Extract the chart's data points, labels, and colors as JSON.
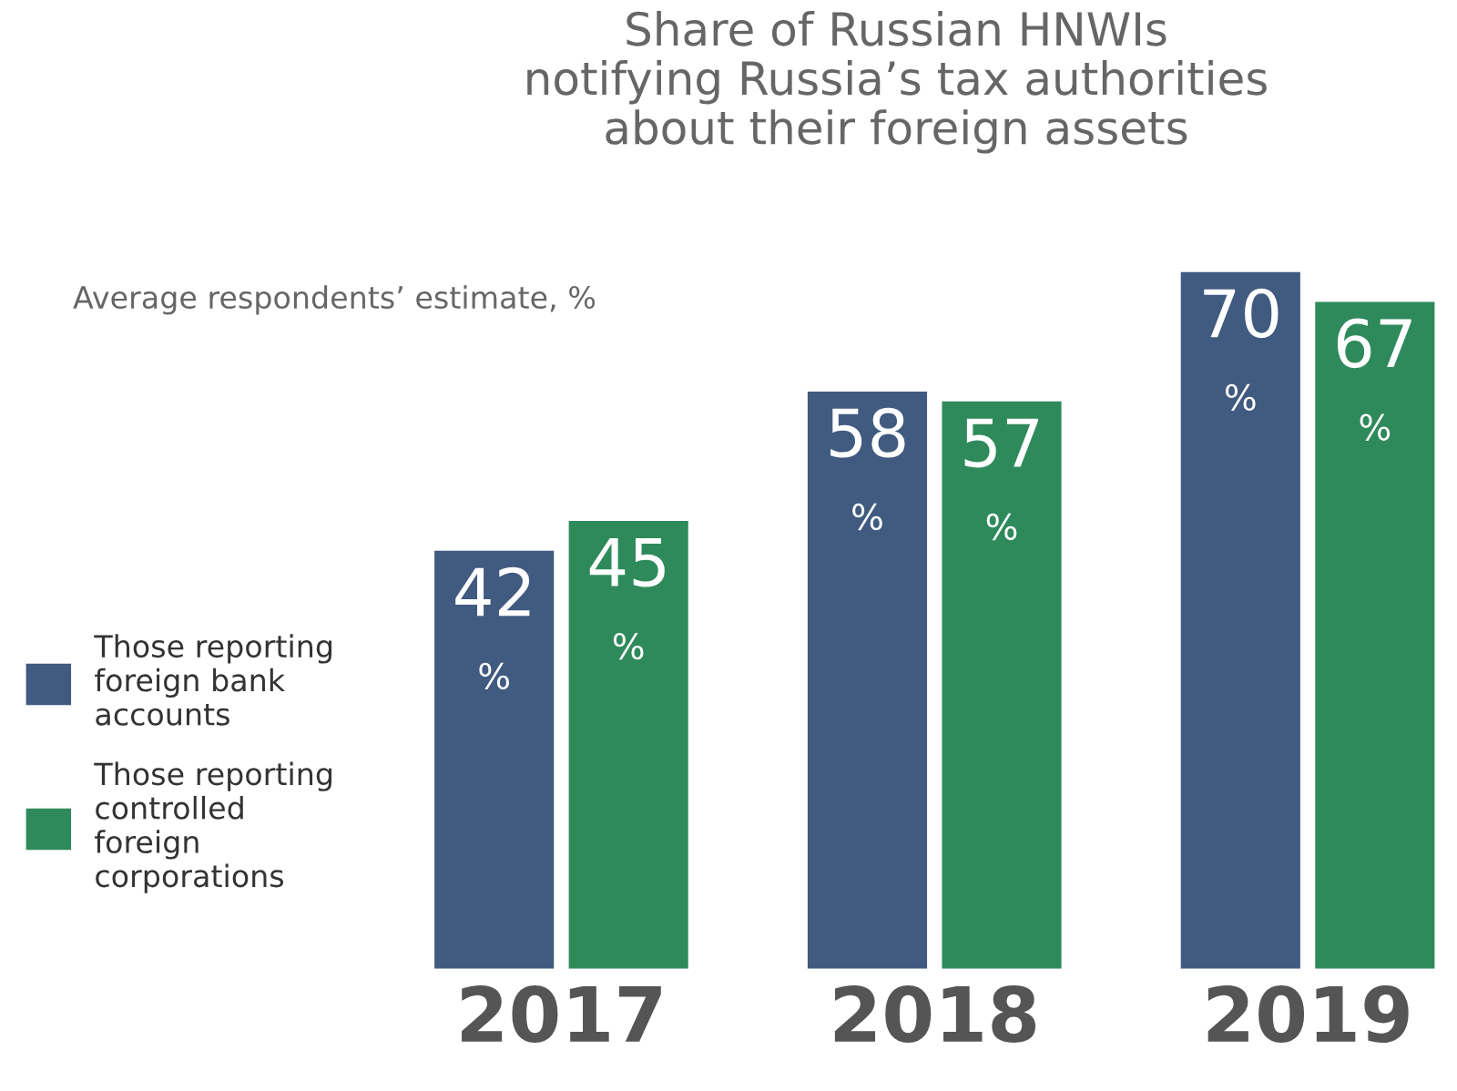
{
  "chart_data": {
    "type": "bar",
    "title": "Share of Russian HNWIs\nnotifying Russia’s tax authorities\nabout their foreign assets",
    "subtitle": "Average respondents’ estimate, %",
    "categories": [
      "2017",
      "2018",
      "2019"
    ],
    "series": [
      {
        "name": "Those reporting\nforeign bank\naccounts",
        "color": "#405a80",
        "values": [
          42,
          58,
          70
        ],
        "value_labels": [
          "42\n%",
          "58\n%",
          "70\n%"
        ]
      },
      {
        "name": "Those reporting\ncontrolled\nforeign\ncorporations",
        "color": "#2f8a5b",
        "values": [
          45,
          57,
          67
        ],
        "value_labels": [
          "45\n%",
          "57\n%",
          "67\n%"
        ]
      }
    ],
    "grid": false,
    "legend": "left"
  }
}
